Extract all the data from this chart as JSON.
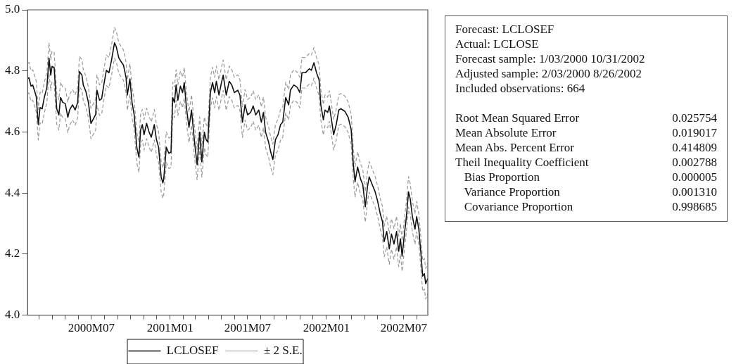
{
  "chart_data": {
    "type": "line",
    "legend": "bottom",
    "marker": "none",
    "xlim": [
      "2000-02-03",
      "2002-08-26"
    ],
    "xticks": [
      {
        "value": "2000-03-01",
        "label": null
      },
      {
        "value": "2000-04-01",
        "label": null
      },
      {
        "value": "2000-05-01",
        "label": null
      },
      {
        "value": "2000-06-01",
        "label": null
      },
      {
        "value": "2000-07-01",
        "label": "2000M07"
      },
      {
        "value": "2000-08-01",
        "label": null
      },
      {
        "value": "2000-09-01",
        "label": null
      },
      {
        "value": "2000-10-01",
        "label": null
      },
      {
        "value": "2000-11-01",
        "label": null
      },
      {
        "value": "2000-12-01",
        "label": null
      },
      {
        "value": "2001-01-01",
        "label": "2001M01"
      },
      {
        "value": "2001-02-01",
        "label": null
      },
      {
        "value": "2001-03-01",
        "label": null
      },
      {
        "value": "2001-04-01",
        "label": null
      },
      {
        "value": "2001-05-01",
        "label": null
      },
      {
        "value": "2001-06-01",
        "label": null
      },
      {
        "value": "2001-07-01",
        "label": "2001M07"
      },
      {
        "value": "2001-08-01",
        "label": null
      },
      {
        "value": "2001-09-01",
        "label": null
      },
      {
        "value": "2001-10-01",
        "label": null
      },
      {
        "value": "2001-11-01",
        "label": null
      },
      {
        "value": "2001-12-01",
        "label": null
      },
      {
        "value": "2002-01-01",
        "label": "2002M01"
      },
      {
        "value": "2002-02-01",
        "label": null
      },
      {
        "value": "2002-03-01",
        "label": null
      },
      {
        "value": "2002-04-01",
        "label": null
      },
      {
        "value": "2002-05-01",
        "label": null
      },
      {
        "value": "2002-06-01",
        "label": null
      },
      {
        "value": "2002-07-01",
        "label": "2002M07"
      },
      {
        "value": "2002-08-01",
        "label": null
      }
    ],
    "ylim": [
      4.0,
      5.0
    ],
    "yticks": [
      {
        "value": 4.0,
        "label": "4.0"
      },
      {
        "value": 4.2,
        "label": "4.2"
      },
      {
        "value": 4.4,
        "label": "4.4"
      },
      {
        "value": 4.6,
        "label": "4.6"
      },
      {
        "value": 4.8,
        "label": "4.8"
      },
      {
        "value": 5.0,
        "label": "5.0"
      }
    ],
    "x": [
      "2000-02-03",
      "2000-02-06",
      "2000-02-11",
      "2000-02-15",
      "2000-02-23",
      "2000-02-28",
      "2000-03-03",
      "2000-03-08",
      "2000-03-13",
      "2000-03-19",
      "2000-03-24",
      "2000-03-28",
      "2000-03-31",
      "2000-04-05",
      "2000-04-11",
      "2000-04-16",
      "2000-04-20",
      "2000-04-25",
      "2000-05-01",
      "2000-05-07",
      "2000-05-11",
      "2000-05-18",
      "2000-05-24",
      "2000-05-30",
      "2000-06-03",
      "2000-06-09",
      "2000-06-12",
      "2000-06-18",
      "2000-06-24",
      "2000-06-30",
      "2000-07-05",
      "2000-07-11",
      "2000-07-14",
      "2000-07-20",
      "2000-07-25",
      "2000-07-31",
      "2000-08-05",
      "2000-08-11",
      "2000-08-17",
      "2000-08-24",
      "2000-08-28",
      "2000-09-03",
      "2000-09-08",
      "2000-09-14",
      "2000-09-20",
      "2000-09-23",
      "2000-09-29",
      "2000-10-04",
      "2000-10-09",
      "2000-10-15",
      "2000-10-20",
      "2000-10-24",
      "2000-10-28",
      "2000-11-01",
      "2000-11-07",
      "2000-11-13",
      "2000-11-18",
      "2000-11-25",
      "2000-11-30",
      "2000-12-05",
      "2000-12-11",
      "2000-12-15",
      "2000-12-17",
      "2000-12-23",
      "2000-12-29",
      "2001-01-03",
      "2001-01-07",
      "2001-01-11",
      "2001-01-15",
      "2001-01-19",
      "2001-01-25",
      "2001-01-30",
      "2001-02-03",
      "2001-02-08",
      "2001-02-14",
      "2001-02-20",
      "2001-02-27",
      "2001-03-05",
      "2001-03-11",
      "2001-03-16",
      "2001-03-22",
      "2001-03-26",
      "2001-03-30",
      "2001-04-05",
      "2001-04-10",
      "2001-04-15",
      "2001-04-19",
      "2001-04-25",
      "2001-05-01",
      "2001-05-05",
      "2001-05-12",
      "2001-05-19",
      "2001-05-25",
      "2001-05-31",
      "2001-06-08",
      "2001-06-13",
      "2001-06-19",
      "2001-06-25",
      "2001-07-01",
      "2001-07-08",
      "2001-07-14",
      "2001-07-20",
      "2001-07-27",
      "2001-08-02",
      "2001-08-07",
      "2001-08-12",
      "2001-08-19",
      "2001-08-24",
      "2001-08-29",
      "2001-09-04",
      "2001-09-10",
      "2001-09-16",
      "2001-09-21",
      "2001-09-28",
      "2001-10-05",
      "2001-10-09",
      "2001-10-17",
      "2001-10-25",
      "2001-10-31",
      "2001-11-05",
      "2001-11-13",
      "2001-11-22",
      "2001-11-27",
      "2001-12-03",
      "2001-12-09",
      "2001-12-15",
      "2001-12-19",
      "2001-12-25",
      "2001-12-29",
      "2002-01-04",
      "2002-01-08",
      "2002-01-13",
      "2002-01-18",
      "2002-01-24",
      "2002-01-30",
      "2002-02-04",
      "2002-02-13",
      "2002-02-21",
      "2002-02-28",
      "2002-03-05",
      "2002-03-09",
      "2002-03-15",
      "2002-03-22",
      "2002-03-27",
      "2002-04-02",
      "2002-04-07",
      "2002-04-11",
      "2002-04-18",
      "2002-04-25",
      "2002-05-01",
      "2002-05-07",
      "2002-05-12",
      "2002-05-16",
      "2002-05-22",
      "2002-05-28",
      "2002-06-02",
      "2002-06-08",
      "2002-06-14",
      "2002-06-19",
      "2002-06-23",
      "2002-06-27",
      "2002-07-03",
      "2002-07-07",
      "2002-07-12",
      "2002-07-16",
      "2002-07-21",
      "2002-07-27",
      "2002-07-31",
      "2002-08-05",
      "2002-08-10",
      "2002-08-14",
      "2002-08-18",
      "2002-08-21",
      "2002-08-26"
    ],
    "series": [
      {
        "name": "LCLOSEF",
        "color": "#111111",
        "line_style": "solid",
        "values": [
          4.774,
          4.778,
          4.75,
          4.754,
          4.717,
          4.624,
          4.68,
          4.676,
          4.713,
          4.746,
          4.842,
          4.786,
          4.815,
          4.811,
          4.676,
          4.656,
          4.713,
          4.697,
          4.693,
          4.648,
          4.672,
          4.689,
          4.672,
          4.697,
          4.798,
          4.786,
          4.754,
          4.733,
          4.697,
          4.628,
          4.641,
          4.657,
          4.737,
          4.704,
          4.709,
          4.762,
          4.802,
          4.794,
          4.835,
          4.892,
          4.88,
          4.843,
          4.831,
          4.819,
          4.778,
          4.721,
          4.774,
          4.697,
          4.656,
          4.55,
          4.518,
          4.607,
          4.624,
          4.591,
          4.628,
          4.599,
          4.583,
          4.624,
          4.575,
          4.55,
          4.453,
          4.433,
          4.445,
          4.55,
          4.53,
          4.534,
          4.713,
          4.697,
          4.754,
          4.704,
          4.75,
          4.729,
          4.762,
          4.68,
          4.615,
          4.672,
          4.567,
          4.493,
          4.599,
          4.502,
          4.599,
          4.575,
          4.567,
          4.729,
          4.762,
          4.729,
          4.766,
          4.721,
          4.762,
          4.786,
          4.721,
          4.766,
          4.754,
          4.729,
          4.737,
          4.721,
          4.632,
          4.689,
          4.656,
          4.664,
          4.685,
          4.656,
          4.672,
          4.632,
          4.664,
          4.599,
          4.567,
          4.534,
          4.51,
          4.575,
          4.591,
          4.624,
          4.632,
          4.713,
          4.689,
          4.737,
          4.754,
          4.746,
          4.729,
          4.794,
          4.794,
          4.807,
          4.802,
          4.827,
          4.794,
          4.77,
          4.689,
          4.64,
          4.672,
          4.664,
          4.685,
          4.64,
          4.591,
          4.624,
          4.672,
          4.676,
          4.668,
          4.648,
          4.607,
          4.493,
          4.437,
          4.485,
          4.445,
          4.428,
          4.355,
          4.42,
          4.453,
          4.428,
          4.404,
          4.372,
          4.331,
          4.307,
          4.241,
          4.274,
          4.217,
          4.266,
          4.233,
          4.274,
          4.209,
          4.25,
          4.193,
          4.274,
          4.323,
          4.404,
          4.38,
          4.323,
          4.282,
          4.323,
          4.282,
          4.201,
          4.128,
          4.136,
          4.103,
          4.12
        ]
      },
      {
        "name": "± 2 S.E.",
        "color": "#999999",
        "line_style": "dashed",
        "values": [
          4.824,
          4.828,
          4.8,
          4.804,
          4.767,
          4.674,
          4.73,
          4.726,
          4.763,
          4.796,
          4.892,
          4.836,
          4.865,
          4.861,
          4.726,
          4.706,
          4.763,
          4.747,
          4.743,
          4.698,
          4.722,
          4.739,
          4.722,
          4.747,
          4.848,
          4.836,
          4.804,
          4.783,
          4.747,
          4.678,
          4.691,
          4.707,
          4.787,
          4.754,
          4.759,
          4.812,
          4.852,
          4.844,
          4.885,
          4.942,
          4.93,
          4.893,
          4.881,
          4.869,
          4.828,
          4.771,
          4.824,
          4.747,
          4.706,
          4.6,
          4.568,
          4.657,
          4.674,
          4.641,
          4.678,
          4.649,
          4.633,
          4.674,
          4.625,
          4.6,
          4.503,
          4.483,
          4.495,
          4.6,
          4.58,
          4.584,
          4.763,
          4.747,
          4.804,
          4.754,
          4.8,
          4.779,
          4.812,
          4.73,
          4.665,
          4.722,
          4.617,
          4.543,
          4.649,
          4.552,
          4.649,
          4.625,
          4.617,
          4.779,
          4.812,
          4.779,
          4.816,
          4.771,
          4.812,
          4.836,
          4.771,
          4.816,
          4.804,
          4.779,
          4.787,
          4.771,
          4.682,
          4.739,
          4.706,
          4.714,
          4.735,
          4.706,
          4.722,
          4.682,
          4.714,
          4.649,
          4.617,
          4.584,
          4.56,
          4.625,
          4.641,
          4.674,
          4.682,
          4.763,
          4.739,
          4.787,
          4.804,
          4.796,
          4.779,
          4.844,
          4.844,
          4.857,
          4.852,
          4.877,
          4.844,
          4.82,
          4.739,
          4.69,
          4.722,
          4.714,
          4.735,
          4.69,
          4.641,
          4.674,
          4.722,
          4.726,
          4.718,
          4.698,
          4.657,
          4.543,
          4.487,
          4.535,
          4.495,
          4.478,
          4.405,
          4.47,
          4.503,
          4.478,
          4.454,
          4.422,
          4.381,
          4.357,
          4.291,
          4.324,
          4.267,
          4.316,
          4.283,
          4.324,
          4.259,
          4.3,
          4.243,
          4.324,
          4.373,
          4.454,
          4.43,
          4.373,
          4.332,
          4.373,
          4.332,
          4.251,
          4.178,
          4.186,
          4.153,
          4.17
        ]
      },
      {
        "color": "#999999",
        "line_style": "dashed",
        "values": [
          4.724,
          4.728,
          4.7,
          4.704,
          4.667,
          4.574,
          4.63,
          4.626,
          4.663,
          4.696,
          4.792,
          4.736,
          4.765,
          4.761,
          4.626,
          4.606,
          4.663,
          4.647,
          4.643,
          4.598,
          4.622,
          4.639,
          4.622,
          4.647,
          4.748,
          4.736,
          4.704,
          4.683,
          4.647,
          4.578,
          4.591,
          4.607,
          4.687,
          4.654,
          4.659,
          4.712,
          4.752,
          4.744,
          4.785,
          4.842,
          4.83,
          4.793,
          4.781,
          4.769,
          4.728,
          4.671,
          4.724,
          4.647,
          4.606,
          4.5,
          4.468,
          4.557,
          4.574,
          4.541,
          4.578,
          4.549,
          4.533,
          4.574,
          4.525,
          4.5,
          4.403,
          4.383,
          4.395,
          4.5,
          4.48,
          4.484,
          4.663,
          4.647,
          4.704,
          4.654,
          4.7,
          4.679,
          4.712,
          4.63,
          4.565,
          4.622,
          4.517,
          4.443,
          4.549,
          4.452,
          4.549,
          4.525,
          4.517,
          4.679,
          4.712,
          4.679,
          4.716,
          4.671,
          4.712,
          4.736,
          4.671,
          4.716,
          4.704,
          4.679,
          4.687,
          4.671,
          4.582,
          4.639,
          4.606,
          4.614,
          4.635,
          4.606,
          4.622,
          4.582,
          4.614,
          4.549,
          4.517,
          4.484,
          4.46,
          4.525,
          4.541,
          4.574,
          4.582,
          4.663,
          4.639,
          4.687,
          4.704,
          4.696,
          4.679,
          4.744,
          4.744,
          4.757,
          4.752,
          4.777,
          4.744,
          4.72,
          4.639,
          4.59,
          4.622,
          4.614,
          4.635,
          4.59,
          4.541,
          4.574,
          4.622,
          4.626,
          4.618,
          4.598,
          4.557,
          4.443,
          4.387,
          4.435,
          4.395,
          4.378,
          4.305,
          4.37,
          4.403,
          4.378,
          4.354,
          4.322,
          4.281,
          4.257,
          4.191,
          4.224,
          4.167,
          4.216,
          4.183,
          4.224,
          4.159,
          4.2,
          4.143,
          4.224,
          4.273,
          4.354,
          4.33,
          4.273,
          4.232,
          4.273,
          4.232,
          4.151,
          4.078,
          4.086,
          4.053,
          4.07
        ]
      }
    ],
    "annotations": [
      "Forecast: LCLOSEF",
      "Actual: LCLOSE",
      "Forecast sample: 1/03/2000 10/31/2002",
      "Adjusted sample: 2/03/2000 8/26/2002",
      "Included observations: 664",
      "Root Mean Squared Error\t0.025754",
      "Mean Absolute Error\t0.019017",
      "Mean Abs. Percent Error\t0.414809",
      "Theil Inequality Coefficient\t0.002788",
      "   Bias Proportion\t0.000005",
      "   Variance Proportion\t0.001310",
      "   Covariance Proportion\t0.998685"
    ]
  }
}
